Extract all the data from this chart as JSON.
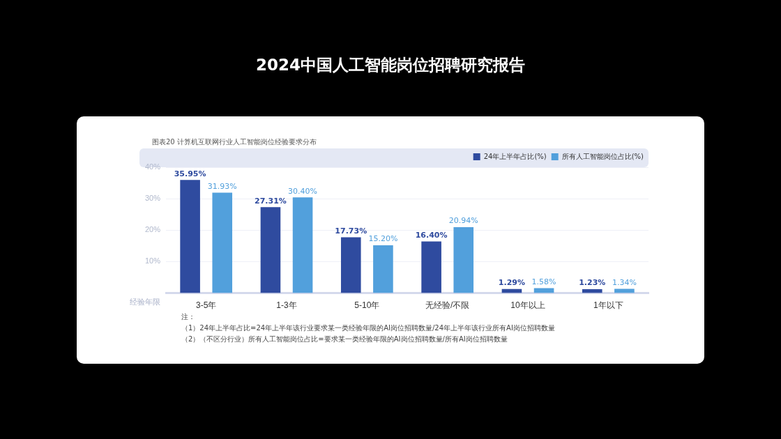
{
  "chart_data": {
    "type": "bar",
    "title": "2024中国人工智能岗位招聘研究报告",
    "subtitle": "图表20 计算机互联网行业人工智能岗位经验要求分布",
    "xlabel": "经验年限",
    "categories": [
      "3-5年",
      "1-3年",
      "5-10年",
      "无经验/不限",
      "10年以上",
      "1年以下"
    ],
    "series": [
      {
        "name": "24年上半年占比(%)",
        "color": "#2f4b9f",
        "values": [
          35.95,
          27.31,
          17.73,
          16.4,
          1.29,
          1.23
        ],
        "value_labels": [
          "35.95%",
          "27.31%",
          "17.73%",
          "16.40%",
          "1.29%",
          "1.23%"
        ]
      },
      {
        "name": "所有人工智能岗位占比(%)",
        "color": "#52a0dc",
        "values": [
          31.93,
          30.4,
          15.2,
          20.94,
          1.58,
          1.34
        ],
        "value_labels": [
          "31.93%",
          "30.40%",
          "15.20%",
          "20.94%",
          "1.58%",
          "1.34%"
        ]
      }
    ],
    "ylim": [
      0,
      40
    ],
    "yticks": [
      {
        "value": 10,
        "label": "10%"
      },
      {
        "value": 20,
        "label": "20%"
      },
      {
        "value": 30,
        "label": "30%"
      },
      {
        "value": 40,
        "label": "40%"
      }
    ],
    "grid": "y",
    "legend": "top right",
    "annotations": [
      "注：",
      "（1）24年上半年占比=24年上半年该行业要求某一类经验年限的AI岗位招聘数量/24年上半年该行业所有AI岗位招聘数量",
      "（2）（不区分行业）所有人工智能岗位占比=要求某一类经验年限的AI岗位招聘数量/所有AI岗位招聘数量"
    ]
  }
}
